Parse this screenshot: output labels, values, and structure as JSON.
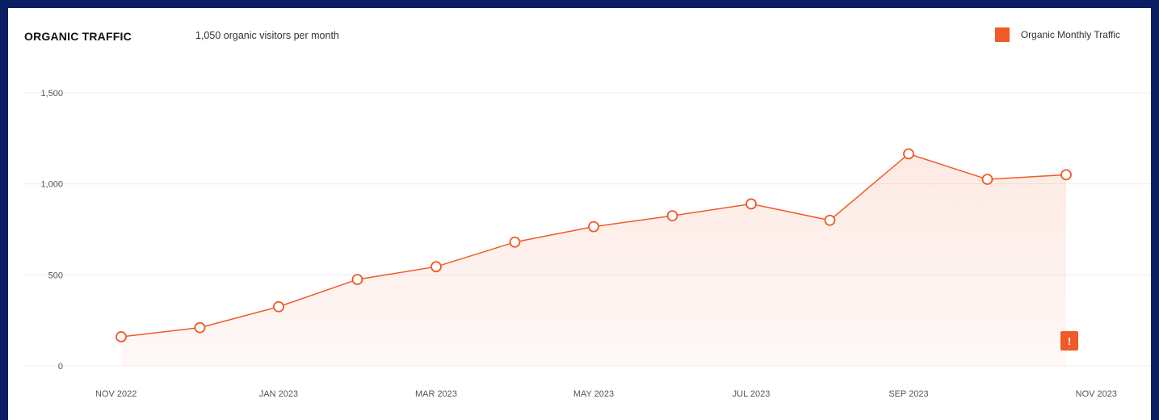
{
  "header": {
    "title": "ORGANIC TRAFFIC",
    "subtitle": "1,050 organic visitors per month"
  },
  "legend": {
    "label": "Organic Monthly Traffic",
    "color": "#f05a28"
  },
  "annotation": {
    "label": "!"
  },
  "chart_data": {
    "type": "area",
    "title": "ORGANIC TRAFFIC",
    "subtitle": "1,050 organic visitors per month",
    "x": [
      "Nov 2022",
      "Dec 2022",
      "Jan 2023",
      "Feb 2023",
      "Mar 2023",
      "Apr 2023",
      "May 2023",
      "Jun 2023",
      "Jul 2023",
      "Aug 2023",
      "Sep 2023",
      "Oct 2023",
      "Nov 2023"
    ],
    "x_tick_labels": [
      "NOV 2022",
      "",
      "JAN 2023",
      "",
      "MAR 2023",
      "",
      "MAY 2023",
      "",
      "JUL 2023",
      "",
      "SEP 2023",
      "",
      "NOV 2023"
    ],
    "series": [
      {
        "name": "Organic Monthly Traffic",
        "values": [
          160,
          210,
          325,
          475,
          545,
          680,
          765,
          825,
          890,
          800,
          1165,
          1025,
          1050
        ],
        "color": "#f05a28"
      }
    ],
    "y_ticks": [
      0,
      500,
      1000,
      1500
    ],
    "y_tick_labels": [
      "0",
      "500",
      "1,000",
      "1,500"
    ],
    "ylim": [
      0,
      1500
    ],
    "grid": true,
    "legend_position": "top-right",
    "xlabel": "",
    "ylabel": ""
  }
}
